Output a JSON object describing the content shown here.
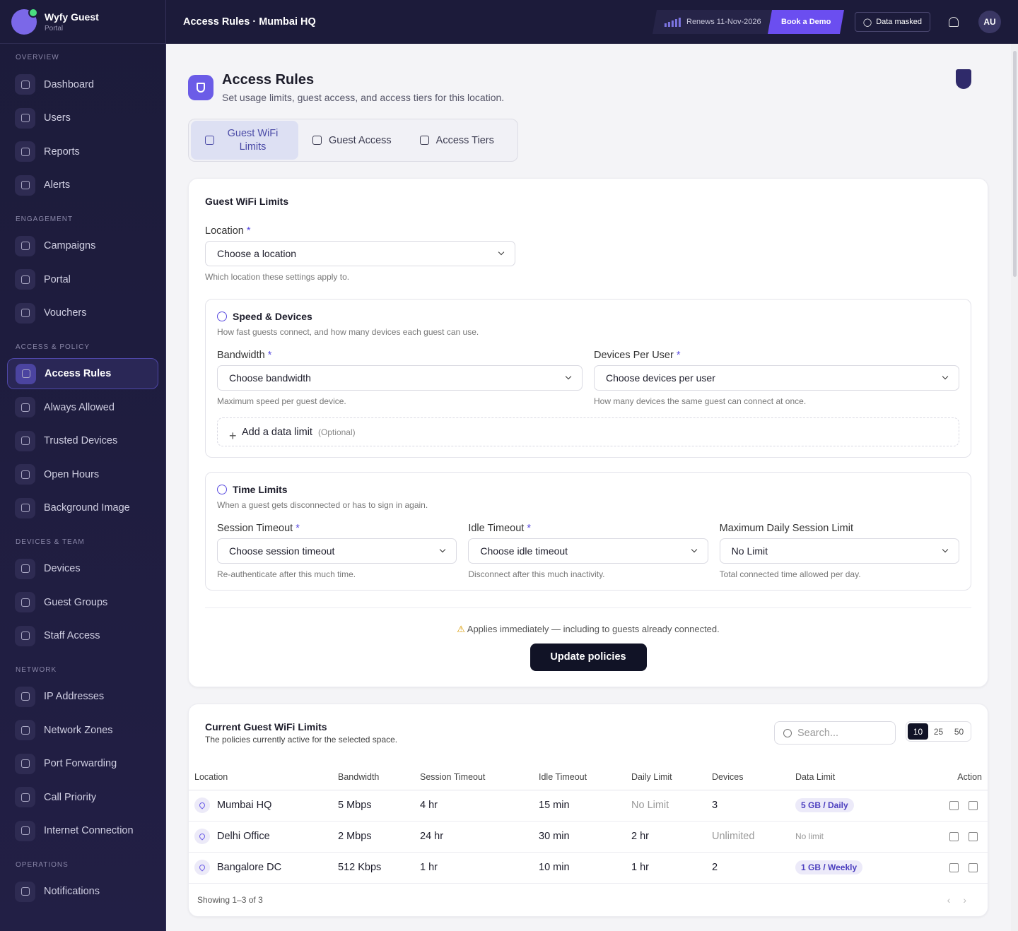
{
  "sidebar": {
    "brand": "Wyfy Guest",
    "brand_sub": "Portal",
    "sections": [
      {
        "title": "OVERVIEW",
        "items": [
          "Dashboard",
          "Users",
          "Reports",
          "Alerts"
        ]
      },
      {
        "title": "ENGAGEMENT",
        "items": [
          "Campaigns",
          "Portal",
          "Vouchers"
        ]
      },
      {
        "title": "ACCESS & POLICY",
        "items": [
          "Access Rules",
          "Always Allowed",
          "Trusted Devices",
          "Open Hours",
          "Background Image"
        ]
      },
      {
        "title": "DEVICES & TEAM",
        "items": [
          "Devices",
          "Guest Groups",
          "Staff Access"
        ]
      },
      {
        "title": "NETWORK",
        "items": [
          "IP Addresses",
          "Network Zones",
          "Port Forwarding",
          "Call Priority",
          "Internet Connection"
        ]
      },
      {
        "title": "OPERATIONS",
        "items": [
          "Notifications"
        ]
      }
    ]
  },
  "topbar": {
    "breadcrumb": "Access Rules · Mumbai HQ",
    "renews": "Renews 11-Nov-2026",
    "demo": "Book a Demo",
    "masked": "Data masked",
    "avatar": "AU"
  },
  "header": {
    "title": "Access Rules",
    "subtitle": "Set usage limits, guest access, and access tiers for this location."
  },
  "tabs": [
    "Guest WiFi Limits",
    "Guest Access",
    "Access Tiers"
  ],
  "form": {
    "title": "Guest WiFi Limits",
    "required_mark": "*",
    "location": {
      "label": "Location",
      "placeholder": "Choose a location",
      "help": "Which location these settings apply to."
    },
    "speed": {
      "title": "Speed & Devices",
      "description": "How fast guests connect, and how many devices each guest can use.",
      "fields": [
        {
          "label": "Bandwidth",
          "placeholder": "Choose bandwidth",
          "help": "Maximum speed per guest device."
        },
        {
          "label": "Devices Per User",
          "placeholder": "Choose devices per user",
          "help": "How many devices the same guest can connect at once."
        }
      ],
      "data_limit": "Add a data limit",
      "data_limit_note": "(Optional)"
    },
    "time": {
      "title": "Time Limits",
      "description": "When a guest gets disconnected or has to sign in again.",
      "fields": [
        {
          "label": "Session Timeout",
          "placeholder": "Choose session timeout",
          "help": "Re-authenticate after this much time."
        },
        {
          "label": "Idle Timeout",
          "placeholder": "Choose idle timeout",
          "help": "Disconnect after this much inactivity."
        },
        {
          "label": "Maximum Daily Session Limit",
          "placeholder": "No Limit",
          "help": "Total connected time allowed per day."
        }
      ]
    },
    "notice": "Applies immediately — including to guests already connected.",
    "button": "Update policies"
  },
  "table": {
    "title": "Current Guest WiFi Limits",
    "subtitle": "The policies currently active for the selected space.",
    "search_placeholder": "Search...",
    "page_sizes": [
      10,
      25,
      50
    ],
    "columns": [
      "Location",
      "Bandwidth",
      "Session Timeout",
      "Idle Timeout",
      "Daily Limit",
      "Devices",
      "Data Limit",
      "Action"
    ],
    "rows": [
      [
        "Mumbai HQ",
        "5 Mbps",
        "4 hr",
        "15 min",
        "No Limit",
        "3",
        "5 GB / Daily"
      ],
      [
        "Delhi Office",
        "2 Mbps",
        "24 hr",
        "30 min",
        "2 hr",
        "Unlimited",
        "No limit"
      ],
      [
        "Bangalore DC",
        "512 Kbps",
        "1 hr",
        "10 min",
        "1 hr",
        "2",
        "1 GB / Weekly"
      ]
    ],
    "footer": "Showing 1–3 of 3"
  }
}
